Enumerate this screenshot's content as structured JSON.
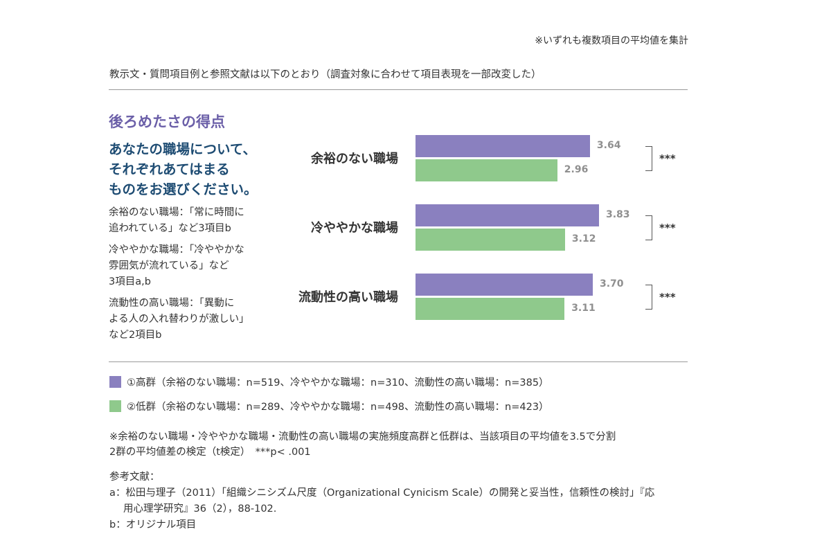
{
  "top_note": "※いずれも複数項目の平均値を集計",
  "intro": "教示文・質問項目例と参照文献は以下のとおり（調査対象に合わせて項目表現を一部改変した）",
  "score_title": "後ろめたさの得点",
  "question_lines": [
    "あなたの職場について、",
    "それぞれあてはまる",
    "ものをお選びください。"
  ],
  "item_descriptions": [
    [
      "余裕のない職場：「常に時間に",
      "追われている」など3項目b"
    ],
    [
      "冷ややかな職場：「冷ややかな",
      "雰囲気が流れている」など",
      "3項目a,b"
    ],
    [
      "流動性の高い職場：「異動に",
      "よる人の入れ替わりが激しい」",
      "など2項目b"
    ]
  ],
  "chart_data": {
    "type": "bar",
    "orientation": "horizontal",
    "categories": [
      "余裕のない職場",
      "冷ややかな職場",
      "流動性の高い職場"
    ],
    "series": [
      {
        "name": "①高群",
        "values": [
          3.64,
          3.83,
          3.7
        ],
        "labels": [
          "3.64",
          "3.83",
          "3.70"
        ],
        "color": "#8a80bf"
      },
      {
        "name": "②低群",
        "values": [
          2.96,
          3.12,
          3.11
        ],
        "labels": [
          "2.96",
          "3.12",
          "3.11"
        ],
        "color": "#8fc98c"
      }
    ],
    "significance": [
      "***",
      "***",
      "***"
    ],
    "xlim": [
      0,
      3.83
    ],
    "grid": false
  },
  "legend": [
    {
      "text": "①高群（余裕のない職場：n=519、冷ややかな職場：n=310、流動性の高い職場：n=385）",
      "color": "#8a80bf"
    },
    {
      "text": "②低群（余裕のない職場：n=289、冷ややかな職場：n=498、流動性の高い職場：n=423）",
      "color": "#8fc98c"
    }
  ],
  "note_lines": [
    "※余裕のない職場・冷ややかな職場・流動性の高い職場の実施頻度高群と低群は、当該項目の平均値を3.5で分割",
    "2群の平均値差の検定（t検定）　***p< .001"
  ],
  "references": {
    "heading": "参考文献：",
    "a_line1": "a：松田与理子（2011）「組織シニシズム尺度（Organizational Cynicism Scale）の開発と妥当性，信頼性の検討」『応",
    "a_line2": "用心理学研究』36（2），88-102.",
    "b_line": "b：オリジナル項目"
  }
}
